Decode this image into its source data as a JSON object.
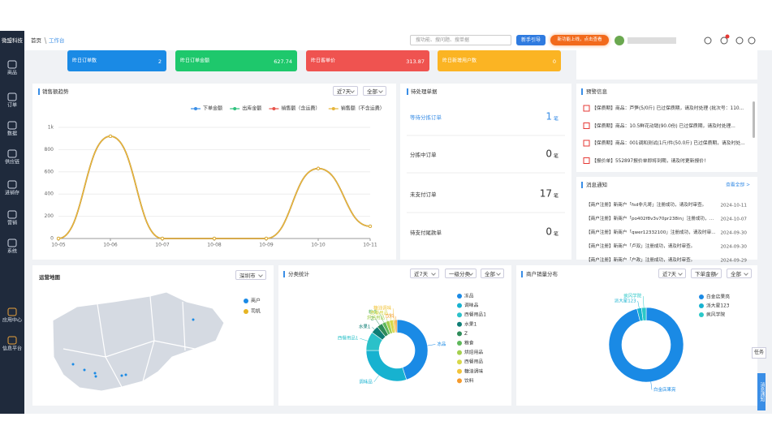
{
  "sidebar": {
    "brand": "微盟科技",
    "items": [
      "商品",
      "订单",
      "数据",
      "供应链",
      "进销存",
      "营销",
      "系统",
      "应用中心",
      "信息平台"
    ]
  },
  "header": {
    "breadcrumb": [
      "首页",
      "工作台"
    ],
    "search_placeholder": "搜功能、搜问题、搜单据",
    "guide_button": "新手引导",
    "new_feature_button": "新功能上线，点击查看"
  },
  "kpis": [
    {
      "label": "昨日订单数",
      "value": 2,
      "color": "#1a8ae5"
    },
    {
      "label": "昨日订单金额",
      "value": 627.74,
      "color": "#1ec86c"
    },
    {
      "label": "昨日客单价",
      "value": 313.87,
      "color": "#ef5350"
    },
    {
      "label": "昨日新增用户数",
      "value": 0,
      "color": "#fbb423"
    }
  ],
  "pending": {
    "title": "待处理单据",
    "unit": "笔",
    "items": [
      {
        "label": "等待分拣订单",
        "count": 1
      },
      {
        "label": "分拣中订单",
        "count": 0
      },
      {
        "label": "未支付订单",
        "count": 17
      },
      {
        "label": "待支付尾款单",
        "count": 0
      }
    ]
  },
  "warnings": {
    "title": "预警信息",
    "items": [
      "【保质期】商品：芦笋(5/0斤) 已过保质期，请及时处理 (批次号：110...",
      "【保质期】商品：10.5鲜花动销(90.0份) 已过保质期，请及时处理...",
      "【保质期】商品：001调和测试(1斤/件(50.0斤) 已过保质期，请及时处...",
      "【报价单】552897报价单即将到期，请及时更新报价!"
    ]
  },
  "messages": {
    "title": "消息通知",
    "view_all": "查看全部 >",
    "items": [
      {
        "text": "【商户注册】新商户「fsd非凡哥」注册成功，请及时审查。",
        "date": "2024-10-11"
      },
      {
        "text": "【商户注册】新商户「po402f8v3v70pr238in」注册成功，请...",
        "date": "2024-10-07"
      },
      {
        "text": "【商户注册】新商户「qwer12332100」注册成功，请及时审...",
        "date": "2024-09-30"
      },
      {
        "text": "【商户注册】新商户「卢双」注册成功，请及时审查。",
        "date": "2024-09-30"
      },
      {
        "text": "【商户注册】新商户「户政」注册成功，请及时审查。",
        "date": "2024-09-29"
      }
    ]
  },
  "map": {
    "title": "运营地图",
    "city": "深圳市",
    "legend": [
      {
        "name": "商户",
        "color": "#1a8ae5"
      },
      {
        "name": "司机",
        "color": "#e6b422"
      }
    ]
  },
  "side_tabs": [
    "任务",
    "消息通知"
  ],
  "chart_data": [
    {
      "type": "line",
      "title": "销售额趋势",
      "filters": [
        "近7天",
        "全部"
      ],
      "categories": [
        "10-05",
        "10-06",
        "10-07",
        "10-08",
        "10-09",
        "10-10",
        "10-11"
      ],
      "series": [
        {
          "name": "下单金额",
          "color": "#3a8ee6",
          "values": [
            0,
            920,
            0,
            0,
            0,
            630,
            110
          ]
        },
        {
          "name": "出库金额",
          "color": "#2ec27e",
          "values": [
            0,
            920,
            0,
            0,
            0,
            630,
            110
          ]
        },
        {
          "name": "销售额（含运费）",
          "color": "#e8534a",
          "values": [
            0,
            920,
            0,
            0,
            0,
            630,
            110
          ]
        },
        {
          "name": "销售额（不含运费）",
          "color": "#e6b53a",
          "values": [
            0,
            920,
            0,
            0,
            0,
            630,
            110
          ]
        }
      ],
      "ylim": [
        0,
        1000
      ],
      "yticks": [
        0,
        200,
        400,
        600,
        800,
        {
          "value": 1000,
          "label": "1k"
        }
      ],
      "grid": true
    },
    {
      "type": "pie",
      "title": "分类统计",
      "filters": [
        "近7天",
        "一级分类",
        "全部"
      ],
      "categories": [
        "冻品",
        "调味品",
        "西餐用品1",
        "水果1",
        "Z",
        "粮食",
        "烘焙用品",
        "西餐用品",
        "糖油调味",
        "饮料"
      ],
      "values": [
        45,
        30,
        10,
        4,
        3,
        2,
        2,
        2,
        1,
        1
      ],
      "colors": [
        "#1a8ae5",
        "#17b2d0",
        "#2bc1c9",
        "#0e7d75",
        "#2e8c5a",
        "#5fb85b",
        "#a5cf4f",
        "#d8d84a",
        "#f2c43a",
        "#f59a2c"
      ]
    },
    {
      "type": "pie",
      "title": "商户销量分布",
      "filters": [
        "近7天",
        "下单金额",
        "全部"
      ],
      "categories": [
        "白金店果亮",
        "派大星123",
        "疯风学院"
      ],
      "values": [
        96,
        2,
        2
      ],
      "colors": [
        "#1a8ae5",
        "#17b2d0",
        "#2bc8c8"
      ]
    }
  ]
}
